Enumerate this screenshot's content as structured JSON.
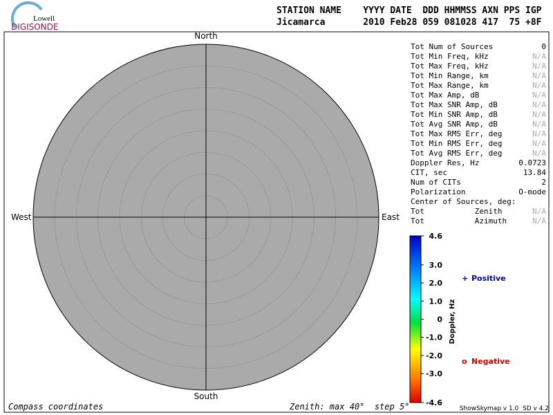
{
  "logo": {
    "top": "Lowell",
    "bottom": "DIGISONDE"
  },
  "header": {
    "labels": "STATION NAME    YYYY DATE  DDD HHMMSS AXN PPS IGP",
    "values": "Jicamarca       2010 Feb28 059 081028 417  75 +8F"
  },
  "compass": {
    "north": "North",
    "south": "South",
    "east": "East",
    "west": "West"
  },
  "stats": [
    {
      "label": "Tot Num of Sources",
      "value": "0"
    },
    {
      "label": "Tot Min Freq, kHz",
      "value": "N/A"
    },
    {
      "label": "Tot Max Freq, kHz",
      "value": "N/A"
    },
    {
      "label": "Tot Min Range, km",
      "value": "N/A"
    },
    {
      "label": "Tot Max Range, km",
      "value": "N/A"
    },
    {
      "label": "Tot Max Amp, dB",
      "value": "N/A"
    },
    {
      "label": "Tot Max SNR Amp, dB",
      "value": "N/A"
    },
    {
      "label": "Tot Min SNR Amp, dB",
      "value": "N/A"
    },
    {
      "label": "Tot Avg SNR Amp, dB",
      "value": "N/A"
    },
    {
      "label": "Tot Max RMS Err, deg",
      "value": "N/A"
    },
    {
      "label": "Tot Min RMS Err, deg",
      "value": "N/A"
    },
    {
      "label": "Tot Avg RMS Err, deg",
      "value": "N/A"
    },
    {
      "label": "Doppler Res, Hz",
      "value": "0.0723"
    },
    {
      "label": "CIT, sec",
      "value": "13.84"
    },
    {
      "label": "Num of CITs",
      "value": "2"
    },
    {
      "label": "Polarization",
      "value": "O-mode"
    },
    {
      "label": "Center of Sources, deg:"
    },
    {
      "label": "Tot           Zenith",
      "value": "N/A"
    },
    {
      "label": "Tot           Azimuth",
      "value": "N/A"
    }
  ],
  "colorbar": {
    "title": "Doppler, Hz",
    "range": [
      -4.6,
      4.6
    ],
    "ticks": [
      4.6,
      {
        "value": 3.0,
        "label": "3.0"
      },
      {
        "value": 2.0,
        "label": "2.0"
      },
      {
        "value": 1.0,
        "label": "1.0"
      },
      0,
      {
        "value": -1.0,
        "label": "-1.0"
      },
      {
        "value": -2.0,
        "label": "-2.0"
      },
      {
        "value": -3.0,
        "label": "-3.0"
      },
      -4.6
    ]
  },
  "legend": {
    "positive_symbol": "+",
    "positive": "Positive",
    "negative_symbol": "o",
    "negative": "Negative"
  },
  "footer": {
    "left": "Compass coordinates",
    "center": "Zenith: max 40°  step 5°",
    "right": "ShowSkymap v 1.0  SD v 4.2"
  }
}
